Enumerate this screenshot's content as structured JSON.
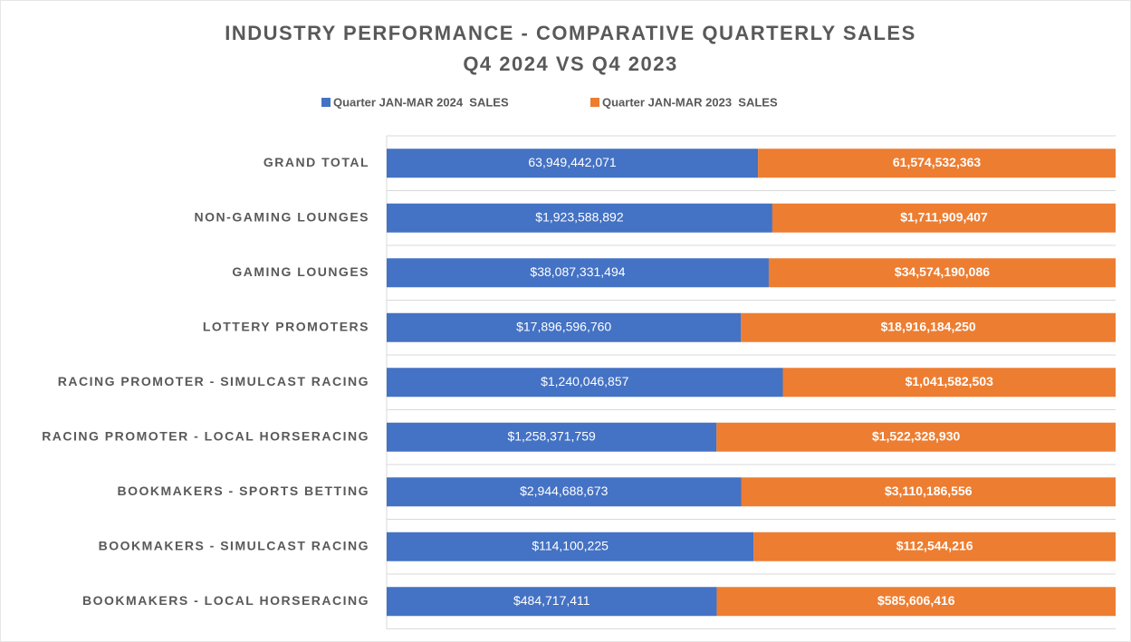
{
  "chart_data": {
    "type": "bar",
    "orientation": "horizontal",
    "stacked": "percent",
    "title": "INDUSTRY PERFORMANCE - COMPARATIVE QUARTERLY SALES",
    "subtitle": "Q4 2024 VS Q4 2023",
    "legend": "top",
    "categories": [
      "GRAND TOTAL",
      "NON-GAMING LOUNGES",
      "GAMING LOUNGES",
      "LOTTERY PROMOTERS",
      "RACING PROMOTER - SIMULCAST RACING",
      "RACING PROMOTER - LOCAL HORSERACING",
      "BOOKMAKERS - SPORTS BETTING",
      "BOOKMAKERS - SIMULCAST RACING",
      "BOOKMAKERS - LOCAL HORSERACING"
    ],
    "series": [
      {
        "name": "Quarter JAN-MAR 2024  SALES",
        "color": "#4472c4",
        "values": [
          63949442071,
          1923588892,
          38087331494,
          17896596760,
          1240046857,
          1258371759,
          2944688673,
          114100225,
          484717411
        ],
        "value_labels": [
          "63,949,442,071",
          "$1,923,588,892",
          "$38,087,331,494",
          "$17,896,596,760",
          "$1,240,046,857",
          "$1,258,371,759",
          "$2,944,688,673",
          "$114,100,225",
          "$484,717,411"
        ]
      },
      {
        "name": "Quarter JAN-MAR 2023  SALES",
        "color": "#ed7d31",
        "values": [
          61574532363,
          1711909407,
          34574190086,
          18916184250,
          1041582503,
          1522328930,
          3110186556,
          112544216,
          585606416
        ],
        "value_labels": [
          "61,574,532,363",
          "$1,711,909,407",
          "$34,574,190,086",
          "$18,916,184,250",
          "$1,041,582,503",
          "$1,522,328,930",
          "$3,110,186,556",
          "$112,544,216",
          "$585,606,416"
        ]
      }
    ]
  }
}
